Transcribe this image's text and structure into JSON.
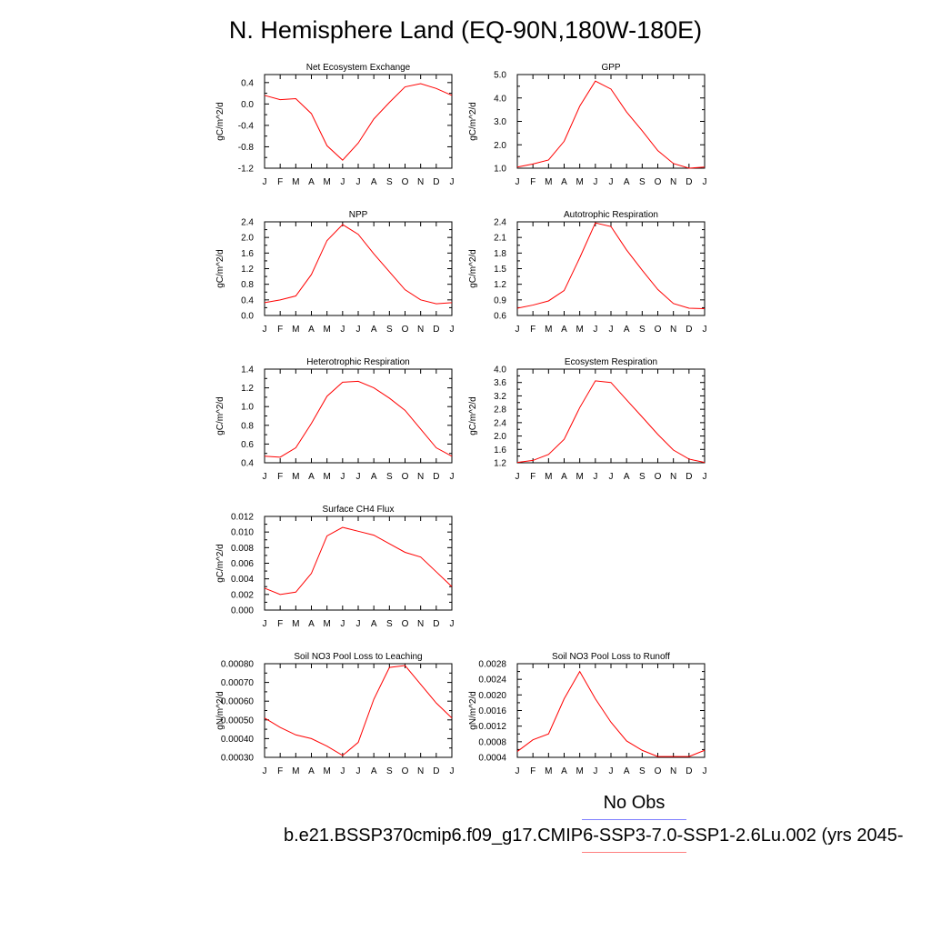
{
  "title": "N. Hemisphere Land (EQ-90N,180W-180E)",
  "legend": {
    "obs_label": "No Obs",
    "case_label": "b.e21.BSSP370cmip6.f09_g17.CMIP6-SSP3-7.0-SSP1-2.6Lu.002 (yrs 2045-",
    "obs_color": "#7f7fff",
    "case_color": "#ff7f7f"
  },
  "chart_data": [
    {
      "type": "line",
      "title": "Net Ecosystem Exchange",
      "ylabel": "gC/m^2/d",
      "categories": [
        "J",
        "F",
        "M",
        "A",
        "M",
        "J",
        "J",
        "A",
        "S",
        "O",
        "N",
        "D",
        "J"
      ],
      "ylim": [
        -1.2,
        0.55
      ],
      "yticks": [
        "0.4",
        "0.0",
        "-0.4",
        "-0.8",
        "-1.2"
      ],
      "ytick_values": [
        0.4,
        0.0,
        -0.4,
        -0.8,
        -1.2
      ],
      "series": [
        {
          "values": [
            0.16,
            0.08,
            0.1,
            -0.18,
            -0.78,
            -1.05,
            -0.73,
            -0.28,
            0.03,
            0.32,
            0.38,
            0.29,
            0.16
          ],
          "color": "#ff0000"
        }
      ]
    },
    {
      "type": "line",
      "title": "GPP",
      "ylabel": "gC/m^2/d",
      "categories": [
        "J",
        "F",
        "M",
        "A",
        "M",
        "J",
        "J",
        "A",
        "S",
        "O",
        "N",
        "D",
        "J"
      ],
      "ylim": [
        1.0,
        5.0
      ],
      "yticks": [
        "5.0",
        "4.0",
        "3.0",
        "2.0",
        "1.0"
      ],
      "ytick_values": [
        5.0,
        4.0,
        3.0,
        2.0,
        1.0
      ],
      "series": [
        {
          "values": [
            1.05,
            1.18,
            1.35,
            2.15,
            3.65,
            4.72,
            4.38,
            3.4,
            2.6,
            1.75,
            1.2,
            1.0,
            1.05
          ],
          "color": "#ff0000"
        }
      ]
    },
    {
      "type": "line",
      "title": "NPP",
      "ylabel": "gC/m^2/d",
      "categories": [
        "J",
        "F",
        "M",
        "A",
        "M",
        "J",
        "J",
        "A",
        "S",
        "O",
        "N",
        "D",
        "J"
      ],
      "ylim": [
        0.0,
        2.4
      ],
      "yticks": [
        "2.4",
        "2.0",
        "1.6",
        "1.2",
        "0.8",
        "0.4",
        "0.0"
      ],
      "ytick_values": [
        2.4,
        2.0,
        1.6,
        1.2,
        0.8,
        0.4,
        0.0
      ],
      "series": [
        {
          "values": [
            0.33,
            0.4,
            0.5,
            1.05,
            1.92,
            2.33,
            2.08,
            1.58,
            1.12,
            0.66,
            0.4,
            0.3,
            0.33
          ],
          "color": "#ff0000"
        }
      ]
    },
    {
      "type": "line",
      "title": "Autotrophic Respiration",
      "ylabel": "gC/m^2/d",
      "categories": [
        "J",
        "F",
        "M",
        "A",
        "M",
        "J",
        "J",
        "A",
        "S",
        "O",
        "N",
        "D",
        "J"
      ],
      "ylim": [
        0.6,
        2.4
      ],
      "yticks": [
        "2.4",
        "2.1",
        "1.8",
        "1.5",
        "1.2",
        "0.9",
        "0.6"
      ],
      "ytick_values": [
        2.4,
        2.1,
        1.8,
        1.5,
        1.2,
        0.9,
        0.6
      ],
      "series": [
        {
          "values": [
            0.74,
            0.8,
            0.88,
            1.08,
            1.71,
            2.38,
            2.31,
            1.86,
            1.47,
            1.1,
            0.83,
            0.74,
            0.73
          ],
          "color": "#ff0000"
        }
      ]
    },
    {
      "type": "line",
      "title": "Heterotrophic Respiration",
      "ylabel": "gC/m^2/d",
      "categories": [
        "J",
        "F",
        "M",
        "A",
        "M",
        "J",
        "J",
        "A",
        "S",
        "O",
        "N",
        "D",
        "J"
      ],
      "ylim": [
        0.4,
        1.4
      ],
      "yticks": [
        "1.4",
        "1.2",
        "1.0",
        "0.8",
        "0.6",
        "0.4"
      ],
      "ytick_values": [
        1.4,
        1.2,
        1.0,
        0.8,
        0.6,
        0.4
      ],
      "series": [
        {
          "values": [
            0.47,
            0.46,
            0.56,
            0.82,
            1.11,
            1.26,
            1.27,
            1.2,
            1.09,
            0.96,
            0.76,
            0.56,
            0.47
          ],
          "color": "#ff0000"
        }
      ]
    },
    {
      "type": "line",
      "title": "Ecosystem Respiration",
      "ylabel": "gC/m^2/d",
      "categories": [
        "J",
        "F",
        "M",
        "A",
        "M",
        "J",
        "J",
        "A",
        "S",
        "O",
        "N",
        "D",
        "J"
      ],
      "ylim": [
        1.2,
        4.0
      ],
      "yticks": [
        "4.0",
        "3.6",
        "3.2",
        "2.8",
        "2.4",
        "2.0",
        "1.6",
        "1.2"
      ],
      "ytick_values": [
        4.0,
        3.6,
        3.2,
        2.8,
        2.4,
        2.0,
        1.6,
        1.2
      ],
      "series": [
        {
          "values": [
            1.21,
            1.27,
            1.45,
            1.9,
            2.85,
            3.65,
            3.6,
            3.08,
            2.57,
            2.05,
            1.58,
            1.31,
            1.21
          ],
          "color": "#ff0000"
        }
      ]
    },
    {
      "type": "line",
      "title": "Surface CH4 Flux",
      "ylabel": "gC/m^2/d",
      "categories": [
        "J",
        "F",
        "M",
        "A",
        "M",
        "J",
        "J",
        "A",
        "S",
        "O",
        "N",
        "D",
        "J"
      ],
      "ylim": [
        0.0,
        0.012
      ],
      "yticks": [
        "0.012",
        "0.010",
        "0.008",
        "0.006",
        "0.004",
        "0.002",
        "0.000"
      ],
      "ytick_values": [
        0.012,
        0.01,
        0.008,
        0.006,
        0.004,
        0.002,
        0.0
      ],
      "series": [
        {
          "values": [
            0.0028,
            0.002,
            0.0023,
            0.0047,
            0.0095,
            0.0106,
            0.0101,
            0.0096,
            0.0085,
            0.0074,
            0.0068,
            0.0049,
            0.003
          ],
          "color": "#ff0000"
        }
      ]
    },
    {
      "type": "line",
      "title": "Soil NO3 Pool Loss to Leaching",
      "ylabel": "gN/m^2/d",
      "categories": [
        "J",
        "F",
        "M",
        "A",
        "M",
        "J",
        "J",
        "A",
        "S",
        "O",
        "N",
        "D",
        "J"
      ],
      "ylim": [
        0.0003,
        0.0008
      ],
      "yticks": [
        "0.00080",
        "0.00070",
        "0.00060",
        "0.00050",
        "0.00040",
        "0.00030"
      ],
      "ytick_values": [
        0.0008,
        0.0007,
        0.0006,
        0.0005,
        0.0004,
        0.0003
      ],
      "series": [
        {
          "values": [
            0.00051,
            0.00046,
            0.00042,
            0.0004,
            0.00036,
            0.00031,
            0.00038,
            0.00061,
            0.00078,
            0.00079,
            0.00069,
            0.00059,
            0.00051
          ],
          "color": "#ff0000"
        }
      ]
    },
    {
      "type": "line",
      "title": "Soil NO3 Pool Loss to Runoff",
      "ylabel": "gN/m^2/d",
      "categories": [
        "J",
        "F",
        "M",
        "A",
        "M",
        "J",
        "J",
        "A",
        "S",
        "O",
        "N",
        "D",
        "J"
      ],
      "ylim": [
        0.0004,
        0.0028
      ],
      "yticks": [
        "0.0028",
        "0.0024",
        "0.0020",
        "0.0016",
        "0.0012",
        "0.0008",
        "0.0004"
      ],
      "ytick_values": [
        0.0028,
        0.0024,
        0.002,
        0.0016,
        0.0012,
        0.0008,
        0.0004
      ],
      "series": [
        {
          "values": [
            0.00055,
            0.00085,
            0.001,
            0.0019,
            0.0026,
            0.0019,
            0.0013,
            0.00082,
            0.00058,
            0.00042,
            0.00042,
            0.00042,
            0.00058
          ],
          "color": "#ff0000"
        }
      ]
    }
  ]
}
